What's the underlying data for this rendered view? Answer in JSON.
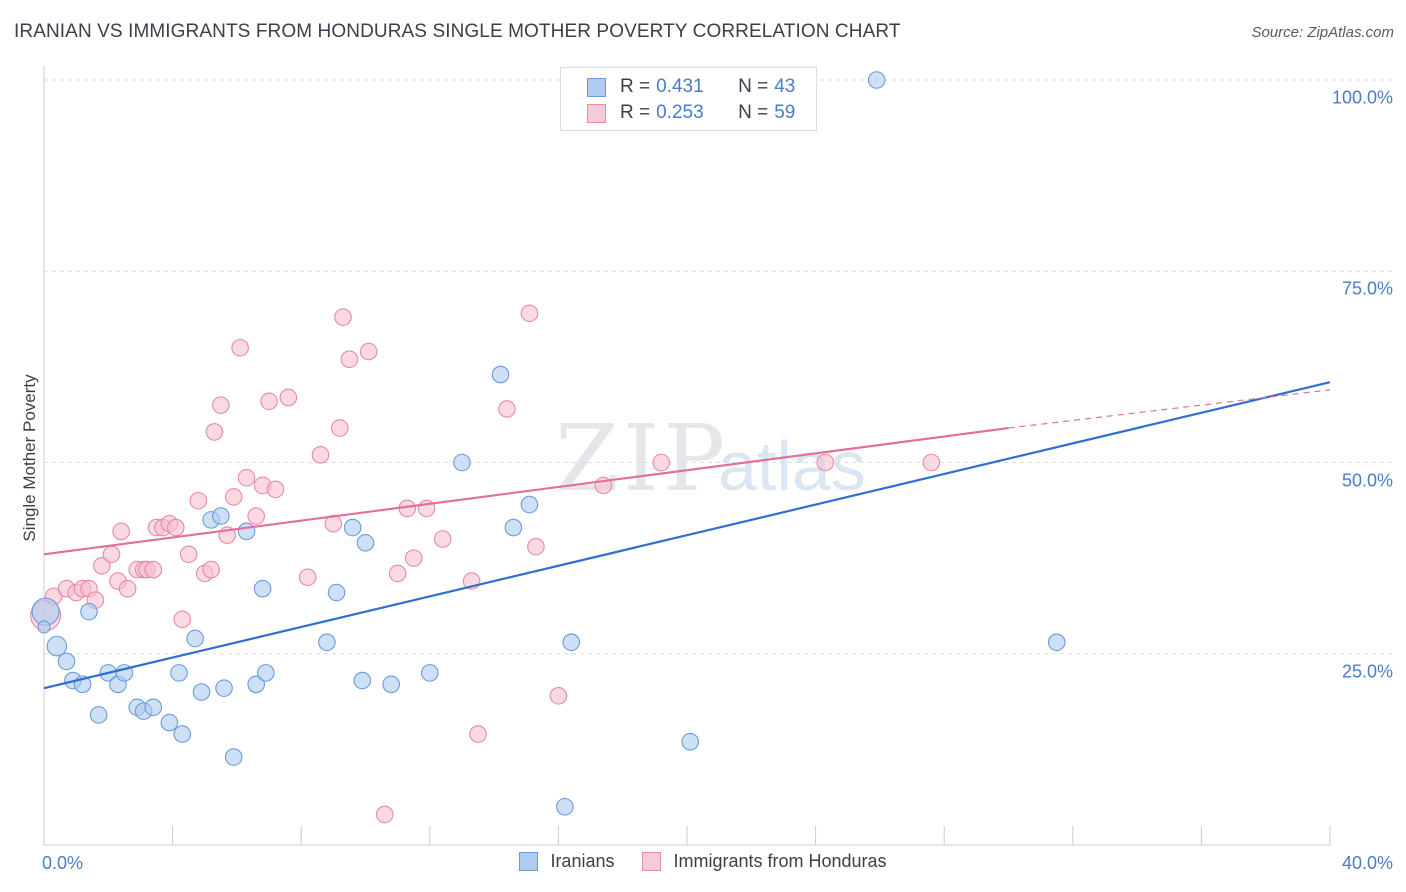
{
  "header": {
    "title": "IRANIAN VS IMMIGRANTS FROM HONDURAS SINGLE MOTHER POVERTY CORRELATION CHART",
    "source": "Source: ZipAtlas.com"
  },
  "watermark": {
    "zip": "ZIP",
    "atlas": "atlas"
  },
  "colors": {
    "blue_fill": "#aecbf0",
    "blue_stroke": "#6a9bdc",
    "blue_line": "#2f6fcf",
    "pink_fill": "#f6bfd0",
    "pink_stroke": "#e88aa8",
    "pink_line": "#e0709a",
    "grid": "#d9dde3",
    "axis_text": "#4a7cc7"
  },
  "legend": {
    "iranians": {
      "r_label": "R = ",
      "r_value": "0.431",
      "n_label": "N = ",
      "n_value": "43"
    },
    "honduras": {
      "r_label": "R = ",
      "r_value": "0.253",
      "n_label": "N = ",
      "n_value": "59"
    }
  },
  "chart_data": {
    "type": "scatter",
    "title": "IRANIAN VS IMMIGRANTS FROM HONDURAS SINGLE MOTHER POVERTY CORRELATION CHART",
    "xlabel": "",
    "ylabel": "Single Mother Poverty",
    "xlim": [
      0,
      40
    ],
    "ylim": [
      0,
      100
    ],
    "x_tick_labels": [
      "0.0%",
      "40.0%"
    ],
    "y_ticks": [
      {
        "value": 25,
        "label": "25.0%"
      },
      {
        "value": 50,
        "label": "50.0%"
      },
      {
        "value": 75,
        "label": "75.0%"
      },
      {
        "value": 100,
        "label": "100.0%"
      }
    ],
    "grid": true,
    "legend_position": "top-center",
    "series": [
      {
        "name": "Iranians",
        "r": 0.431,
        "n": 43,
        "trend": {
          "x": [
            0,
            40
          ],
          "y": [
            20.5,
            60.5
          ],
          "dashed_from": null
        },
        "points": [
          [
            0.05,
            30.5,
            18
          ],
          [
            0.4,
            26,
            13
          ],
          [
            0.7,
            24,
            11
          ],
          [
            0.9,
            21.5,
            11
          ],
          [
            1.2,
            21,
            11
          ],
          [
            1.4,
            30.5,
            11
          ],
          [
            1.7,
            17,
            11
          ],
          [
            2.0,
            22.5,
            11
          ],
          [
            2.3,
            21,
            11
          ],
          [
            2.5,
            22.5,
            11
          ],
          [
            2.9,
            18,
            11
          ],
          [
            3.1,
            17.5,
            11
          ],
          [
            3.4,
            18,
            11
          ],
          [
            3.9,
            16,
            11
          ],
          [
            4.2,
            22.5,
            11
          ],
          [
            4.3,
            14.5,
            11
          ],
          [
            4.7,
            27,
            11
          ],
          [
            4.9,
            20,
            11
          ],
          [
            5.2,
            42.5,
            11
          ],
          [
            5.5,
            43,
            11
          ],
          [
            5.6,
            20.5,
            11
          ],
          [
            5.9,
            11.5,
            11
          ],
          [
            6.3,
            41,
            11
          ],
          [
            6.6,
            21,
            11
          ],
          [
            6.8,
            33.5,
            11
          ],
          [
            6.9,
            22.5,
            11
          ],
          [
            8.8,
            26.5,
            11
          ],
          [
            9.1,
            33,
            11
          ],
          [
            9.6,
            41.5,
            11
          ],
          [
            9.9,
            21.5,
            11
          ],
          [
            10.0,
            39.5,
            11
          ],
          [
            10.8,
            21,
            11
          ],
          [
            12.0,
            22.5,
            11
          ],
          [
            13.0,
            50,
            11
          ],
          [
            14.2,
            61.5,
            11
          ],
          [
            14.6,
            41.5,
            11
          ],
          [
            15.1,
            44.5,
            11
          ],
          [
            16.2,
            5,
            11
          ],
          [
            16.4,
            26.5,
            11
          ],
          [
            20.1,
            13.5,
            11
          ],
          [
            25.9,
            100,
            11
          ],
          [
            31.5,
            26.5,
            11
          ],
          [
            0.0,
            28.5,
            8
          ]
        ]
      },
      {
        "name": "Immigrants from Honduras",
        "r": 0.253,
        "n": 59,
        "trend": {
          "x": [
            0,
            30
          ],
          "y": [
            38,
            54.5
          ],
          "dashed_to": [
            40,
            59.5
          ]
        },
        "points": [
          [
            0.05,
            30,
            20
          ],
          [
            0.3,
            32.5,
            11
          ],
          [
            0.7,
            33.5,
            11
          ],
          [
            1.0,
            33,
            11
          ],
          [
            1.2,
            33.5,
            11
          ],
          [
            1.4,
            33.5,
            11
          ],
          [
            1.6,
            32,
            11
          ],
          [
            1.8,
            36.5,
            11
          ],
          [
            2.1,
            38,
            11
          ],
          [
            2.3,
            34.5,
            11
          ],
          [
            2.4,
            41,
            11
          ],
          [
            2.6,
            33.5,
            11
          ],
          [
            2.9,
            36,
            11
          ],
          [
            3.1,
            36,
            11
          ],
          [
            3.2,
            36,
            11
          ],
          [
            3.4,
            36,
            11
          ],
          [
            3.5,
            41.5,
            11
          ],
          [
            3.7,
            41.5,
            11
          ],
          [
            3.9,
            42,
            11
          ],
          [
            4.1,
            41.5,
            11
          ],
          [
            4.3,
            29.5,
            11
          ],
          [
            4.5,
            38,
            11
          ],
          [
            4.8,
            45,
            11
          ],
          [
            5.0,
            35.5,
            11
          ],
          [
            5.2,
            36,
            11
          ],
          [
            5.3,
            54,
            11
          ],
          [
            5.5,
            57.5,
            11
          ],
          [
            5.7,
            40.5,
            11
          ],
          [
            5.9,
            45.5,
            11
          ],
          [
            6.1,
            65,
            11
          ],
          [
            6.3,
            48,
            11
          ],
          [
            6.6,
            43,
            11
          ],
          [
            6.8,
            47,
            11
          ],
          [
            7.0,
            58,
            11
          ],
          [
            7.2,
            46.5,
            11
          ],
          [
            7.6,
            58.5,
            11
          ],
          [
            8.2,
            35,
            11
          ],
          [
            8.6,
            51,
            11
          ],
          [
            9.0,
            42,
            11
          ],
          [
            9.2,
            54.5,
            11
          ],
          [
            9.3,
            69,
            11
          ],
          [
            9.5,
            63.5,
            11
          ],
          [
            10.1,
            64.5,
            11
          ],
          [
            10.6,
            4,
            11
          ],
          [
            11.0,
            35.5,
            11
          ],
          [
            11.3,
            44,
            11
          ],
          [
            11.5,
            37.5,
            11
          ],
          [
            11.9,
            44,
            11
          ],
          [
            12.4,
            40,
            11
          ],
          [
            13.3,
            34.5,
            11
          ],
          [
            13.5,
            14.5,
            11
          ],
          [
            14.4,
            57,
            11
          ],
          [
            15.1,
            69.5,
            11
          ],
          [
            15.3,
            39,
            11
          ],
          [
            16.0,
            19.5,
            11
          ],
          [
            17.4,
            47,
            11
          ],
          [
            19.2,
            50,
            11
          ],
          [
            24.3,
            50,
            11
          ],
          [
            27.6,
            50,
            11
          ]
        ]
      }
    ]
  },
  "bottom_legend": {
    "iranians": "Iranians",
    "honduras": "Immigrants from Honduras"
  }
}
